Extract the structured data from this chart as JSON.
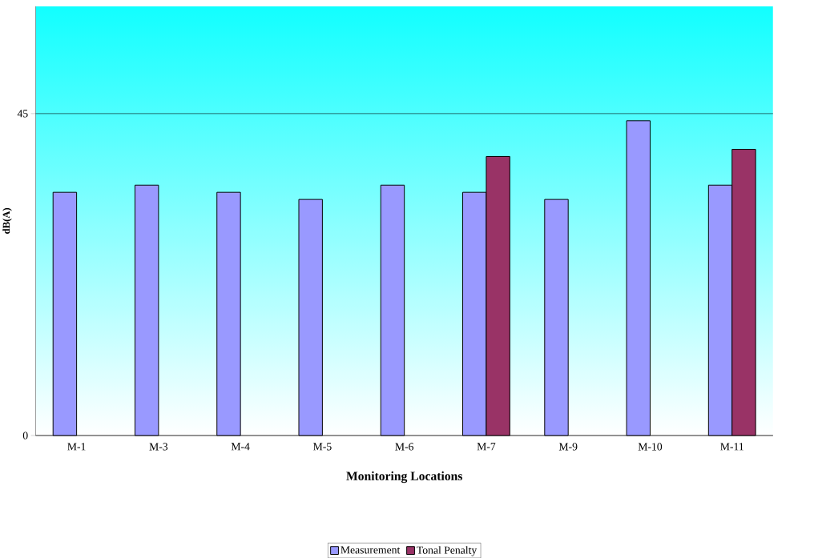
{
  "chart_data": {
    "type": "bar",
    "xlabel": "Monitoring Locations",
    "ylabel": "dB(A)",
    "categories": [
      "M-1",
      "M-3",
      "M-4",
      "M-5",
      "M-6",
      "M-7",
      "M-9",
      "M-10",
      "M-11"
    ],
    "series": [
      {
        "name": "Measurement",
        "color": "#9999ff",
        "values": [
          34,
          35,
          34,
          33,
          35,
          34,
          33,
          44,
          35
        ]
      },
      {
        "name": "Tonal Penalty",
        "color": "#993366",
        "values": [
          null,
          null,
          null,
          null,
          null,
          39,
          null,
          null,
          40
        ]
      }
    ],
    "ylim": [
      0,
      60
    ],
    "yticks": [
      0,
      45
    ],
    "grid": "y",
    "legend": "bottom"
  }
}
